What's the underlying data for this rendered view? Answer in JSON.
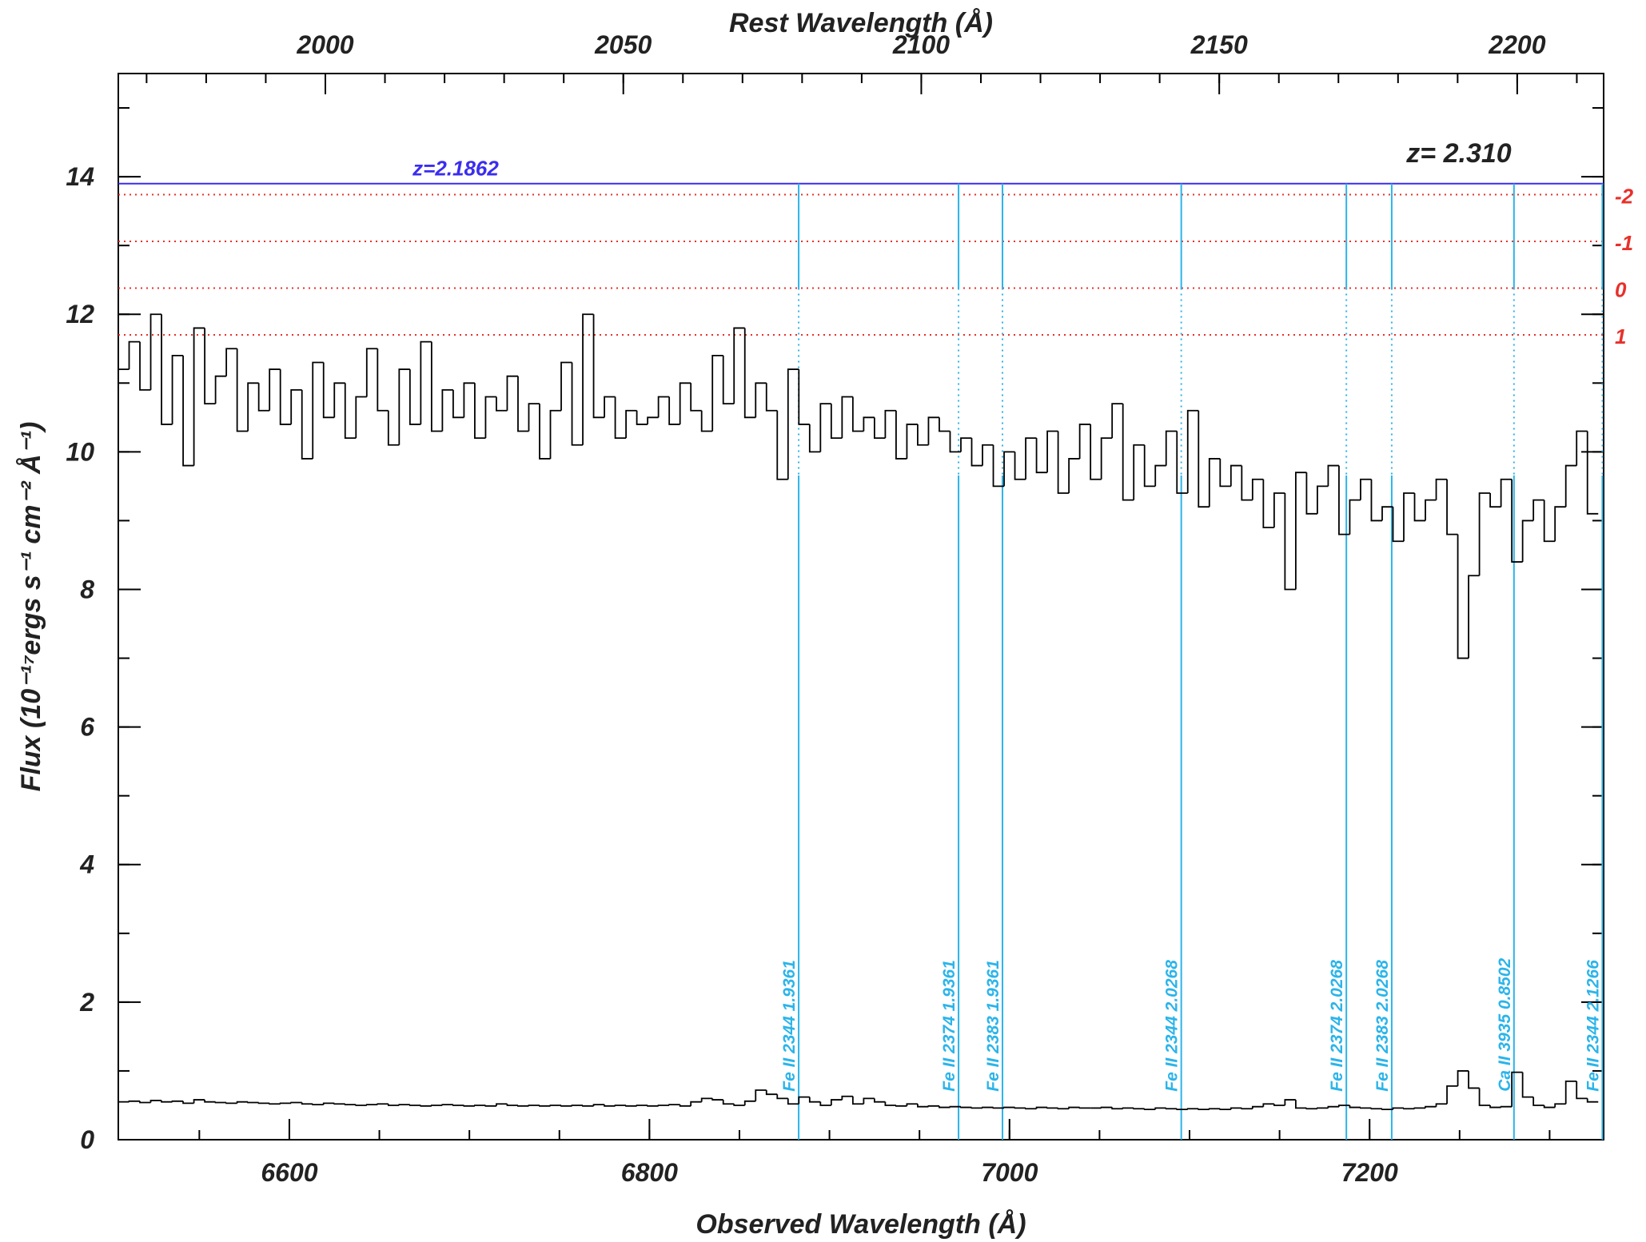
{
  "chart_data": {
    "type": "spectrum",
    "xlabel": "Observed Wavelength (Å)",
    "x2label": "Rest Wavelength (Å)",
    "ylabel": "Flux (10⁻¹⁷ergs s⁻¹ cm⁻² Å⁻¹)",
    "redshift": 2.31,
    "redshift_label": "z= 2.310",
    "xlim": [
      6505,
      7330
    ],
    "xticks": [
      6600,
      6800,
      7000,
      7200
    ],
    "x_minor_step": 50,
    "x2ticks": [
      2000,
      2050,
      2100,
      2150,
      2200
    ],
    "x2_minor_step": 10,
    "ylim": [
      0,
      15.5
    ],
    "yticks": [
      0,
      2,
      4,
      6,
      8,
      10,
      12,
      14
    ],
    "y_minor_step": 1,
    "x": [
      6508,
      6514,
      6520,
      6526,
      6532,
      6538,
      6544,
      6550,
      6556,
      6562,
      6568,
      6574,
      6580,
      6586,
      6592,
      6598,
      6604,
      6610,
      6616,
      6622,
      6628,
      6634,
      6640,
      6646,
      6652,
      6658,
      6664,
      6670,
      6676,
      6682,
      6688,
      6694,
      6700,
      6706,
      6712,
      6718,
      6724,
      6730,
      6736,
      6742,
      6748,
      6754,
      6760,
      6766,
      6772,
      6778,
      6784,
      6790,
      6796,
      6802,
      6808,
      6814,
      6820,
      6826,
      6832,
      6838,
      6844,
      6850,
      6856,
      6862,
      6868,
      6874,
      6880,
      6886,
      6892,
      6898,
      6904,
      6910,
      6916,
      6922,
      6928,
      6934,
      6940,
      6946,
      6952,
      6958,
      6964,
      6970,
      6976,
      6982,
      6988,
      6994,
      7000,
      7006,
      7012,
      7018,
      7024,
      7030,
      7036,
      7042,
      7048,
      7054,
      7060,
      7066,
      7072,
      7078,
      7084,
      7090,
      7096,
      7102,
      7108,
      7114,
      7120,
      7126,
      7132,
      7138,
      7144,
      7150,
      7156,
      7162,
      7168,
      7174,
      7180,
      7186,
      7192,
      7198,
      7204,
      7210,
      7216,
      7222,
      7228,
      7234,
      7240,
      7246,
      7252,
      7258,
      7264,
      7270,
      7276,
      7282,
      7288,
      7294,
      7300,
      7306,
      7312,
      7318,
      7324
    ],
    "series": [
      {
        "name": "flux",
        "color": "#000000",
        "values": [
          11.2,
          11.6,
          10.9,
          12.0,
          10.4,
          11.4,
          9.8,
          11.8,
          10.7,
          11.1,
          11.5,
          10.3,
          11.0,
          10.6,
          11.2,
          10.4,
          10.9,
          9.9,
          11.3,
          10.5,
          11.0,
          10.2,
          10.8,
          11.5,
          10.6,
          10.1,
          11.2,
          10.4,
          11.6,
          10.3,
          10.9,
          10.5,
          11.0,
          10.2,
          10.8,
          10.6,
          11.1,
          10.3,
          10.7,
          9.9,
          10.6,
          11.3,
          10.1,
          12.0,
          10.5,
          10.8,
          10.2,
          10.6,
          10.4,
          10.5,
          10.8,
          10.4,
          11.0,
          10.6,
          10.3,
          11.4,
          10.7,
          11.8,
          10.5,
          11.0,
          10.6,
          9.6,
          11.2,
          10.4,
          10.0,
          10.7,
          10.2,
          10.8,
          10.3,
          10.5,
          10.2,
          10.6,
          9.9,
          10.4,
          10.1,
          10.5,
          10.3,
          10.0,
          10.2,
          9.8,
          10.1,
          9.5,
          10.0,
          9.6,
          10.2,
          9.7,
          10.3,
          9.4,
          9.9,
          10.4,
          9.6,
          10.2,
          10.7,
          9.3,
          10.1,
          9.5,
          9.8,
          10.3,
          9.4,
          10.6,
          9.2,
          9.9,
          9.5,
          9.8,
          9.3,
          9.6,
          8.9,
          9.4,
          8.0,
          9.7,
          9.1,
          9.5,
          9.8,
          8.8,
          9.3,
          9.6,
          9.0,
          9.2,
          8.7,
          9.4,
          9.0,
          9.3,
          9.6,
          8.8,
          7.0,
          8.2,
          9.4,
          9.2,
          9.6,
          8.4,
          9.0,
          9.3,
          8.7,
          9.2,
          9.8,
          10.3,
          9.1
        ]
      },
      {
        "name": "error",
        "color": "#000000",
        "values": [
          0.55,
          0.56,
          0.54,
          0.57,
          0.55,
          0.56,
          0.53,
          0.58,
          0.55,
          0.54,
          0.53,
          0.55,
          0.54,
          0.53,
          0.52,
          0.53,
          0.54,
          0.52,
          0.51,
          0.53,
          0.52,
          0.51,
          0.5,
          0.51,
          0.52,
          0.5,
          0.51,
          0.5,
          0.49,
          0.5,
          0.51,
          0.5,
          0.49,
          0.5,
          0.49,
          0.52,
          0.5,
          0.49,
          0.5,
          0.49,
          0.5,
          0.49,
          0.5,
          0.49,
          0.51,
          0.49,
          0.5,
          0.49,
          0.5,
          0.49,
          0.5,
          0.51,
          0.49,
          0.55,
          0.6,
          0.58,
          0.52,
          0.5,
          0.56,
          0.72,
          0.66,
          0.6,
          0.52,
          0.62,
          0.55,
          0.5,
          0.58,
          0.63,
          0.52,
          0.6,
          0.55,
          0.5,
          0.49,
          0.52,
          0.48,
          0.49,
          0.47,
          0.48,
          0.47,
          0.46,
          0.47,
          0.46,
          0.47,
          0.46,
          0.45,
          0.47,
          0.46,
          0.45,
          0.47,
          0.46,
          0.46,
          0.47,
          0.45,
          0.46,
          0.45,
          0.44,
          0.46,
          0.45,
          0.44,
          0.45,
          0.44,
          0.45,
          0.44,
          0.46,
          0.45,
          0.48,
          0.52,
          0.5,
          0.58,
          0.46,
          0.45,
          0.46,
          0.48,
          0.5,
          0.47,
          0.46,
          0.45,
          0.44,
          0.46,
          0.45,
          0.46,
          0.48,
          0.52,
          0.78,
          1.0,
          0.75,
          0.5,
          0.47,
          0.48,
          0.98,
          0.62,
          0.5,
          0.47,
          0.52,
          0.85,
          0.6,
          0.55
        ]
      }
    ],
    "z_line": {
      "value": 13.9,
      "label": "z=2.1862",
      "color": "#3a2df0"
    },
    "reference_lines": [
      {
        "value": 13.74,
        "label": "-2"
      },
      {
        "value": 13.06,
        "label": "-1"
      },
      {
        "value": 12.38,
        "label": "0"
      },
      {
        "value": 11.7,
        "label": "1"
      }
    ],
    "reference_color": "#e8302a",
    "marker_color": "#2bb4ea",
    "line_markers": [
      {
        "x": 6882.9,
        "label": "Fe II 2344 1.9361"
      },
      {
        "x": 6971.7,
        "label": "Fe II 2374 1.9361"
      },
      {
        "x": 6996.1,
        "label": "Fe II 2383 1.9361"
      },
      {
        "x": 7095.4,
        "label": "Fe II 2344 2.0268"
      },
      {
        "x": 7187.1,
        "label": "Fe II 2374 2.0268"
      },
      {
        "x": 7212.3,
        "label": "Fe II 2383 2.0268"
      },
      {
        "x": 7280.2,
        "label": "Ca II 3935 0.8502"
      },
      {
        "x": 7329.3,
        "label": "Fe II 2344 2.1266"
      }
    ]
  }
}
